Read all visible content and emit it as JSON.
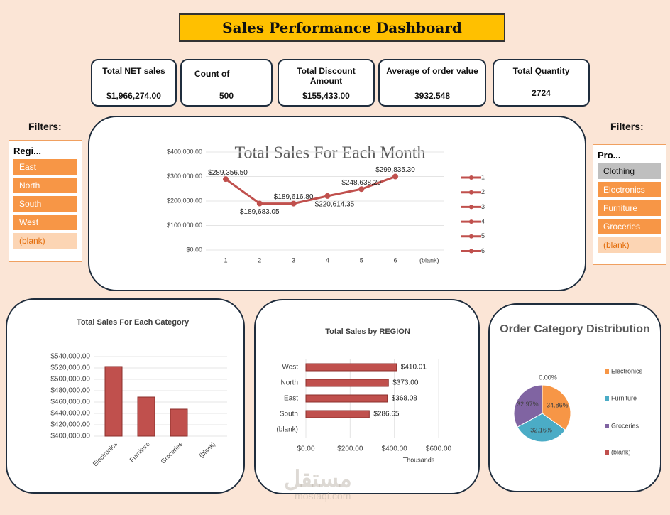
{
  "header": {
    "title": "Sales Performance Dashboard"
  },
  "kpis": [
    {
      "label": "Total NET sales",
      "value": "$1,966,274.00"
    },
    {
      "label": "Count of",
      "value": "500"
    },
    {
      "label": "Total Discount Amount",
      "value": "$155,433.00"
    },
    {
      "label": "Average of order value",
      "value": "3932.548"
    },
    {
      "label": "Total Quantity",
      "value": "2724"
    }
  ],
  "filters": [
    {
      "heading": "Filters:",
      "title": "Regi...",
      "items": [
        "East",
        "North",
        "South",
        "West",
        "(blank)"
      ]
    },
    {
      "heading": "Filters:",
      "title": "Pro...",
      "items": [
        "Clothing",
        "Electronics",
        "Furniture",
        "Groceries",
        "(blank)"
      ]
    }
  ],
  "watermark": [
    "مستقل",
    "mostaql.com"
  ],
  "chart_data": [
    {
      "type": "line",
      "title": "Total Sales For Each Month",
      "categories": [
        "1",
        "2",
        "3",
        "4",
        "5",
        "6",
        "(blank)"
      ],
      "values": [
        289356.5,
        189683.05,
        189616.8,
        220614.35,
        248638.2,
        299835.3,
        null
      ],
      "value_labels": [
        "$289,356.50",
        "$189,683.05",
        "$189,616.80",
        "$220,614.35",
        "$248,638.20",
        "$299,835.30",
        null
      ],
      "color": "#c0504d",
      "ylim": [
        0,
        400000
      ],
      "yticks": [
        {
          "value": 0,
          "label": "$0.00"
        },
        {
          "value": 100000,
          "label": "$100,000.00"
        },
        {
          "value": 200000,
          "label": "$200,000.00"
        },
        {
          "value": 300000,
          "label": "$300,000.00"
        },
        {
          "value": 400000,
          "label": "$400,000.00"
        }
      ],
      "legend": [
        "1",
        "2",
        "3",
        "4",
        "5",
        "6"
      ],
      "grid": true
    },
    {
      "type": "bar",
      "title": "Total Sales For Each Category",
      "categories": [
        "Electronics",
        "Furniture",
        "Groceries",
        "(blank)"
      ],
      "values": [
        522500,
        468750,
        447500,
        null
      ],
      "color": "#c0504d",
      "ylim": [
        400000,
        540000
      ],
      "yticks": [
        {
          "value": 400000,
          "label": "$400,000.00"
        },
        {
          "value": 420000,
          "label": "$420,000.00"
        },
        {
          "value": 440000,
          "label": "$440,000.00"
        },
        {
          "value": 460000,
          "label": "$460,000.00"
        },
        {
          "value": 480000,
          "label": "$480,000.00"
        },
        {
          "value": 500000,
          "label": "$500,000.00"
        },
        {
          "value": 520000,
          "label": "$520,000.00"
        },
        {
          "value": 540000,
          "label": "$540,000.00"
        }
      ],
      "grid": true
    },
    {
      "type": "hbar",
      "title": "Total Sales by REGION",
      "categories": [
        "West",
        "North",
        "East",
        "South",
        "(blank)"
      ],
      "values": [
        410.01,
        373,
        368.08,
        286.65,
        null
      ],
      "value_labels": [
        "$410.01",
        "$373.00",
        "$368.08",
        "$286.65",
        null
      ],
      "color": "#c0504d",
      "xlabel": "Thousands",
      "xlim": [
        0,
        600
      ],
      "xticks": [
        {
          "value": 0,
          "label": "$0.00"
        },
        {
          "value": 200,
          "label": "$200.00"
        },
        {
          "value": 400,
          "label": "$400.00"
        },
        {
          "value": 600,
          "label": "$600.00"
        }
      ],
      "grid": true
    },
    {
      "type": "pie",
      "title": "Order Category Distribution",
      "categories": [
        "Electronics",
        "Furniture",
        "Groceries",
        "(blank)"
      ],
      "values": [
        34.86,
        32.16,
        32.97,
        0
      ],
      "value_labels": [
        "34.86%",
        "32.16%",
        "32.97%",
        "0.00%"
      ],
      "colors": [
        "#f79646",
        "#4bacc6",
        "#8064a2",
        "#c0504d"
      ]
    }
  ]
}
